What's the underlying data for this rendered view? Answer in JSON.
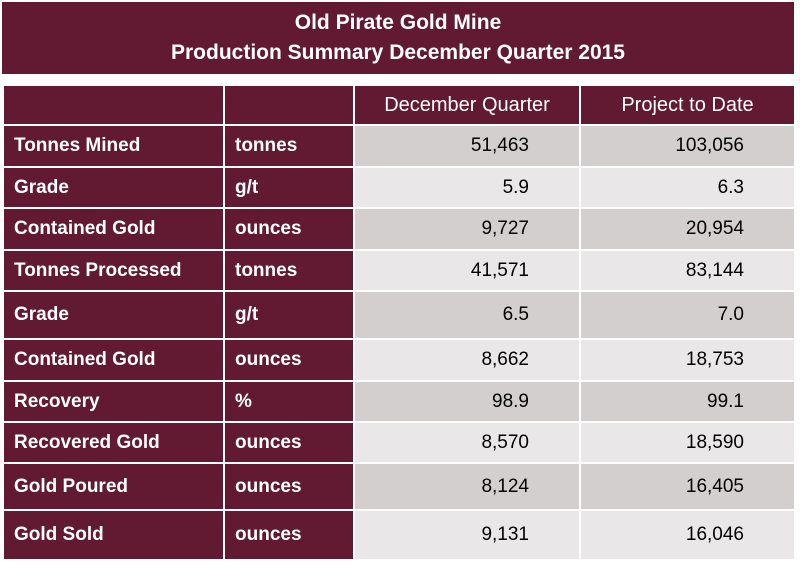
{
  "title": {
    "line1": "Old Pirate Gold Mine",
    "line2": "Production  Summary December Quarter 2015"
  },
  "columns": [
    "",
    "",
    "December Quarter",
    "Project to Date"
  ],
  "rows": [
    {
      "label": "Tonnes Mined",
      "unit": "tonnes",
      "quarter": "51,463",
      "to_date": "103,056"
    },
    {
      "label": "Grade",
      "unit": "g/t",
      "quarter": "5.9",
      "to_date": "6.3"
    },
    {
      "label": "Contained Gold",
      "unit": "ounces",
      "quarter": "9,727",
      "to_date": "20,954"
    },
    {
      "label": "Tonnes Processed",
      "unit": "tonnes",
      "quarter": "41,571",
      "to_date": "83,144"
    },
    {
      "label": "Grade",
      "unit": "g/t",
      "quarter": "6.5",
      "to_date": "7.0"
    },
    {
      "label": "Contained Gold",
      "unit": "ounces",
      "quarter": "8,662",
      "to_date": "18,753"
    },
    {
      "label": "Recovery",
      "unit": "%",
      "quarter": "98.9",
      "to_date": "99.1"
    },
    {
      "label": "Recovered Gold",
      "unit": "ounces",
      "quarter": "8,570",
      "to_date": "18,590"
    },
    {
      "label": "Gold Poured",
      "unit": "ounces",
      "quarter": "8,124",
      "to_date": "16,405"
    },
    {
      "label": "Gold Sold",
      "unit": "ounces",
      "quarter": "9,131",
      "to_date": "16,046"
    }
  ]
}
